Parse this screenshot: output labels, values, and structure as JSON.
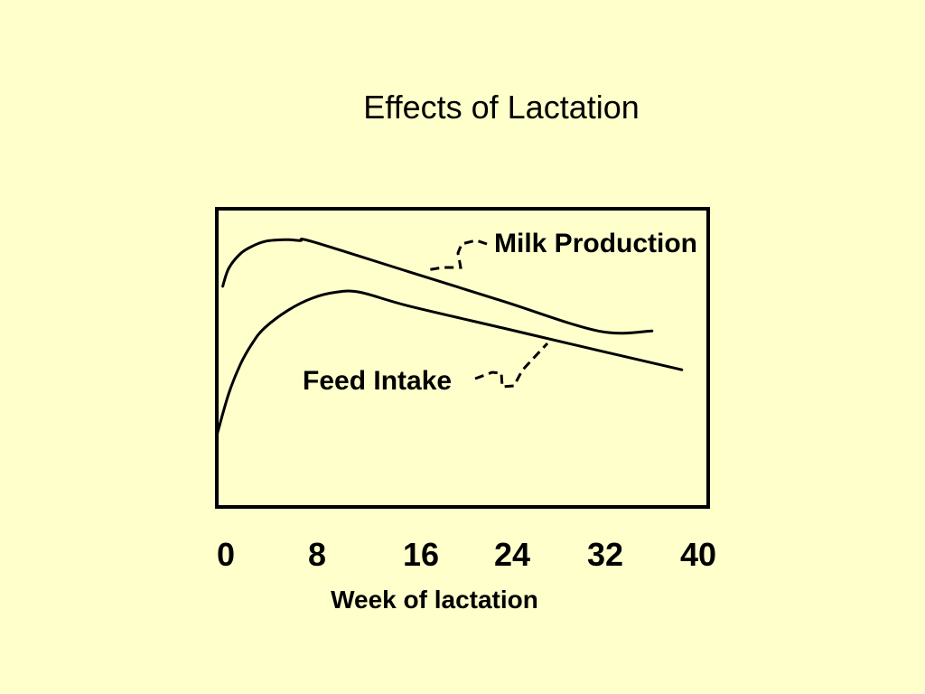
{
  "slide": {
    "title": "Effects of Lactation",
    "background": "#FFFFCC"
  },
  "chart_data": {
    "type": "line",
    "title": "",
    "xlabel": "Week of lactation",
    "ylabel": "",
    "x_ticks": [
      "0",
      "8",
      "16",
      "24",
      "32",
      "40"
    ],
    "xlim": [
      0,
      40
    ],
    "ylim": [
      0,
      1
    ],
    "grid": false,
    "legend": "none",
    "line_color": "#000000",
    "series": [
      {
        "name": "Milk Production",
        "x": [
          0.5,
          1,
          2,
          3,
          4,
          5,
          6,
          7,
          8,
          16,
          24,
          32,
          36.5
        ],
        "y": [
          0.74,
          0.8,
          0.85,
          0.875,
          0.89,
          0.895,
          0.896,
          0.893,
          0.89,
          0.79,
          0.69,
          0.59,
          0.59
        ]
      },
      {
        "name": "Feed Intake",
        "x": [
          0,
          1,
          2,
          3,
          4,
          6,
          8,
          10,
          12,
          16,
          24,
          32,
          39
        ],
        "y": [
          0.24,
          0.38,
          0.48,
          0.55,
          0.6,
          0.66,
          0.7,
          0.72,
          0.72,
          0.675,
          0.6,
          0.525,
          0.46
        ]
      }
    ]
  }
}
